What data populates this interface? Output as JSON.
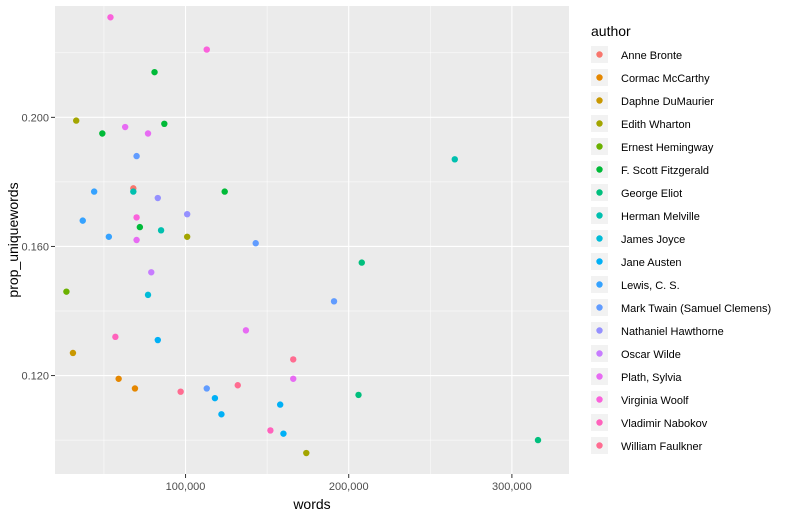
{
  "chart_data": {
    "type": "scatter",
    "xlabel": "words",
    "ylabel": "prop_uniquewords",
    "xlim": [
      20000,
      335000
    ],
    "ylim": [
      0.0895,
      0.2345
    ],
    "x_ticks": [
      100000,
      200000,
      300000
    ],
    "x_tick_labels": [
      "100,000",
      "200,000",
      "300,000"
    ],
    "x_minor_ticks": [
      50000,
      150000,
      250000
    ],
    "y_ticks": [
      0.12,
      0.16,
      0.2
    ],
    "y_tick_labels": [
      "0.120",
      "0.160",
      "0.200"
    ],
    "y_minor_ticks": [
      0.1,
      0.14,
      0.18,
      0.22
    ],
    "grid": true,
    "legend": {
      "title": "author",
      "position": "right"
    },
    "series": [
      {
        "name": "Anne Bronte",
        "color": "#F8766D",
        "points": [
          [
            68000,
            0.178
          ]
        ]
      },
      {
        "name": "Cormac McCarthy",
        "color": "#E58700",
        "points": [
          [
            59000,
            0.119
          ],
          [
            69000,
            0.116
          ]
        ]
      },
      {
        "name": "Daphne DuMaurier",
        "color": "#C99800",
        "points": [
          [
            31000,
            0.127
          ]
        ]
      },
      {
        "name": "Edith Wharton",
        "color": "#A3A500",
        "points": [
          [
            33000,
            0.199
          ],
          [
            101000,
            0.163
          ],
          [
            174000,
            0.096
          ]
        ]
      },
      {
        "name": "Ernest Hemingway",
        "color": "#6BB100",
        "points": [
          [
            27000,
            0.146
          ]
        ]
      },
      {
        "name": "F. Scott Fitzgerald",
        "color": "#00BA38",
        "points": [
          [
            49000,
            0.195
          ],
          [
            81000,
            0.214
          ],
          [
            87000,
            0.198
          ],
          [
            72000,
            0.166
          ],
          [
            124000,
            0.177
          ]
        ]
      },
      {
        "name": "George Eliot",
        "color": "#00BF7D",
        "points": [
          [
            316000,
            0.1
          ],
          [
            206000,
            0.114
          ],
          [
            208000,
            0.155
          ]
        ]
      },
      {
        "name": "Herman Melville",
        "color": "#00C0AF",
        "points": [
          [
            68000,
            0.177
          ],
          [
            85000,
            0.165
          ],
          [
            265000,
            0.187
          ]
        ]
      },
      {
        "name": "James Joyce",
        "color": "#00BCD8",
        "points": [
          [
            77000,
            0.145
          ]
        ]
      },
      {
        "name": "Jane Austen",
        "color": "#00B0F6",
        "points": [
          [
            83000,
            0.131
          ],
          [
            118000,
            0.113
          ],
          [
            122000,
            0.108
          ],
          [
            158000,
            0.111
          ],
          [
            160000,
            0.102
          ]
        ]
      },
      {
        "name": "Lewis, C. S.",
        "color": "#35A2FF",
        "points": [
          [
            44000,
            0.177
          ],
          [
            37000,
            0.168
          ],
          [
            53000,
            0.163
          ]
        ]
      },
      {
        "name": "Mark Twain (Samuel Clemens)",
        "color": "#619CFF",
        "points": [
          [
            70000,
            0.188
          ],
          [
            113000,
            0.116
          ],
          [
            143000,
            0.161
          ],
          [
            191000,
            0.143
          ]
        ]
      },
      {
        "name": "Nathaniel Hawthorne",
        "color": "#9590FF",
        "points": [
          [
            83000,
            0.175
          ],
          [
            101000,
            0.17
          ]
        ]
      },
      {
        "name": "Oscar Wilde",
        "color": "#C77CFF",
        "points": [
          [
            79000,
            0.152
          ]
        ]
      },
      {
        "name": "Plath, Sylvia",
        "color": "#E76BF3",
        "points": [
          [
            63000,
            0.197
          ],
          [
            77000,
            0.195
          ],
          [
            70000,
            0.162
          ],
          [
            137000,
            0.134
          ],
          [
            166000,
            0.119
          ]
        ]
      },
      {
        "name": "Virginia Woolf",
        "color": "#FA62DB",
        "points": [
          [
            54000,
            0.231
          ],
          [
            113000,
            0.221
          ],
          [
            70000,
            0.169
          ]
        ]
      },
      {
        "name": "Vladimir Nabokov",
        "color": "#FF62BC",
        "points": [
          [
            57000,
            0.132
          ],
          [
            152000,
            0.103
          ]
        ]
      },
      {
        "name": "William Faulkner",
        "color": "#FF6C91",
        "points": [
          [
            97000,
            0.115
          ],
          [
            132000,
            0.117
          ],
          [
            166000,
            0.125
          ]
        ]
      }
    ]
  }
}
